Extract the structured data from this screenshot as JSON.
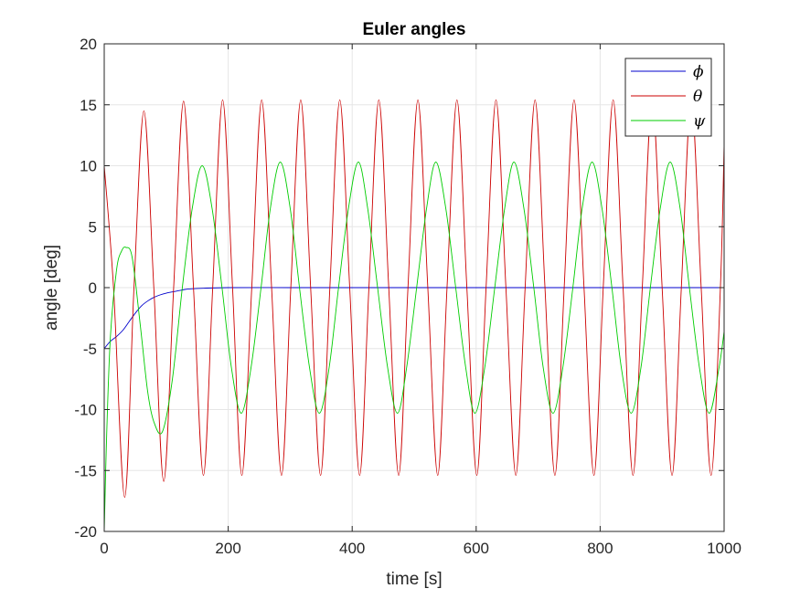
{
  "chart_data": {
    "type": "line",
    "title": "Euler angles",
    "xlabel": "time [s]",
    "ylabel": "angle [deg]",
    "xlim": [
      0,
      1000
    ],
    "ylim": [
      -20,
      20
    ],
    "x_ticks": [
      0,
      200,
      400,
      600,
      800,
      1000
    ],
    "y_ticks": [
      -20,
      -15,
      -10,
      -5,
      0,
      5,
      10,
      15,
      20
    ],
    "grid": true,
    "legend_position": "top-right",
    "series": [
      {
        "name": "ϕ",
        "color": "#0000cc",
        "x": [
          0,
          10,
          20,
          30,
          40,
          50,
          60,
          70,
          80,
          90,
          100,
          110,
          120,
          130,
          140,
          160,
          200,
          300,
          400,
          500,
          600,
          700,
          800,
          900,
          1000
        ],
        "y": [
          -5.0,
          -4.4,
          -4.0,
          -3.5,
          -2.8,
          -2.1,
          -1.5,
          -1.1,
          -0.8,
          -0.6,
          -0.45,
          -0.35,
          -0.25,
          -0.15,
          -0.1,
          -0.05,
          0.0,
          0.0,
          0.0,
          0.0,
          0.0,
          0.0,
          0.0,
          0.0,
          0.0
        ]
      },
      {
        "name": "θ",
        "color": "#cc0000",
        "x": [
          0,
          15,
          33,
          48,
          64,
          80,
          96,
          112,
          128,
          144,
          160,
          175,
          191,
          207,
          222,
          238,
          254,
          270,
          286,
          301,
          317,
          333,
          349,
          364,
          380,
          396,
          412,
          427,
          443,
          459,
          475,
          490,
          506,
          522,
          538,
          553,
          569,
          585,
          601,
          616,
          632,
          648,
          664,
          679,
          695,
          711,
          727,
          742,
          758,
          774,
          790,
          805,
          821,
          837,
          853,
          868,
          884,
          900,
          916,
          931,
          947,
          963,
          979,
          994,
          1000
        ],
        "y": [
          10.0,
          0.0,
          -17.2,
          0.0,
          14.5,
          0.0,
          -15.9,
          0.0,
          15.3,
          0.0,
          -15.4,
          0.0,
          15.4,
          0.0,
          -15.4,
          0.0,
          15.4,
          0.0,
          -15.4,
          0.0,
          15.4,
          0.0,
          -15.4,
          0.0,
          15.4,
          0.0,
          -15.4,
          0.0,
          15.4,
          0.0,
          -15.4,
          0.0,
          15.4,
          0.0,
          -15.4,
          0.0,
          15.4,
          0.0,
          -15.4,
          0.0,
          15.4,
          0.0,
          -15.4,
          0.0,
          15.4,
          0.0,
          -15.4,
          0.0,
          15.4,
          0.0,
          -15.4,
          0.0,
          15.4,
          0.0,
          -15.4,
          0.0,
          15.4,
          0.0,
          -15.4,
          0.0,
          15.4,
          0.0,
          -15.4,
          0.0,
          11.7
        ]
      },
      {
        "name": "ψ",
        "color": "#00cc00",
        "x": [
          0,
          4,
          10,
          20,
          28,
          35,
          45,
          58,
          70,
          80,
          94,
          110,
          126,
          142,
          158,
          174,
          190,
          205,
          221,
          237,
          253,
          268,
          284,
          300,
          315,
          331,
          347,
          363,
          378,
          394,
          410,
          425,
          441,
          457,
          473,
          488,
          504,
          520,
          535,
          551,
          567,
          583,
          598,
          614,
          630,
          646,
          661,
          677,
          693,
          708,
          724,
          740,
          756,
          771,
          787,
          803,
          819,
          834,
          850,
          866,
          881,
          897,
          913,
          929,
          944,
          960,
          976,
          992,
          1000
        ],
        "y": [
          -20.0,
          -12.0,
          -4.0,
          1.5,
          3.0,
          3.3,
          2.5,
          -3.0,
          -8.5,
          -11.0,
          -11.8,
          -7.5,
          0.0,
          6.5,
          10.0,
          6.5,
          0.0,
          -6.5,
          -10.3,
          -6.5,
          0.0,
          6.5,
          10.3,
          6.5,
          0.0,
          -6.5,
          -10.3,
          -6.5,
          0.0,
          6.5,
          10.3,
          6.5,
          0.0,
          -6.5,
          -10.3,
          -6.5,
          0.0,
          6.5,
          10.3,
          6.5,
          0.0,
          -6.5,
          -10.3,
          -6.5,
          0.0,
          6.5,
          10.3,
          6.5,
          0.0,
          -6.5,
          -10.3,
          -6.5,
          0.0,
          6.5,
          10.3,
          6.5,
          0.0,
          -6.5,
          -10.3,
          -6.5,
          0.0,
          6.5,
          10.3,
          6.5,
          0.0,
          -6.5,
          -10.3,
          -6.5,
          -3.6
        ]
      }
    ]
  }
}
